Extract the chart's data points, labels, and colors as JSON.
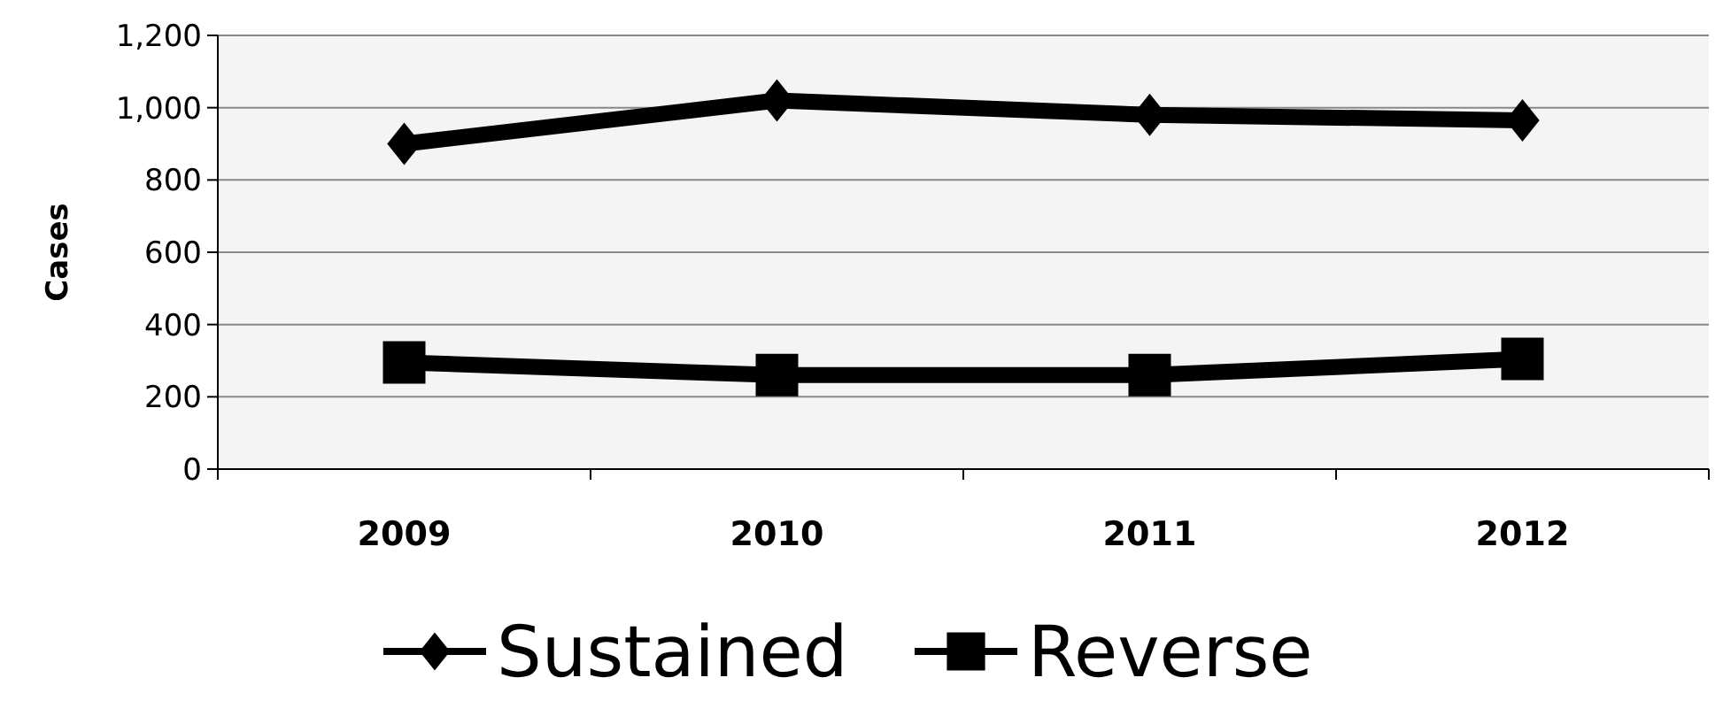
{
  "chart_data": {
    "type": "line",
    "ylabel": "Cases",
    "categories": [
      "2009",
      "2010",
      "2011",
      "2012"
    ],
    "series": [
      {
        "name": "Sustained",
        "color": "#000000",
        "marker": "diamond",
        "values": [
          900,
          1020,
          980,
          965
        ]
      },
      {
        "name": "Reverse",
        "color": "#000000",
        "marker": "square",
        "values": [
          295,
          260,
          260,
          305
        ]
      }
    ],
    "ylim": [
      0,
      1200
    ],
    "yticks": [
      0,
      {
        "value": 200,
        "label": "200"
      },
      {
        "value": 400,
        "label": "400"
      },
      {
        "value": 600,
        "label": "600"
      },
      {
        "value": 800,
        "label": "800"
      },
      {
        "value": 1000,
        "label": "1,000"
      },
      {
        "value": 1200,
        "label": "1,200"
      }
    ],
    "grid": "y",
    "legend": "bottom"
  }
}
